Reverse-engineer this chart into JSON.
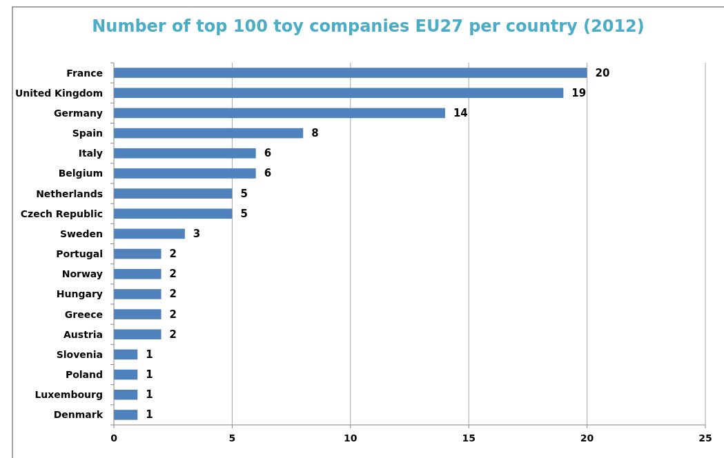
{
  "chart_data": {
    "type": "bar",
    "orientation": "horizontal",
    "title": "Number of top 100 toy companies EU27 per country (2012)",
    "categories": [
      "France",
      "United Kingdom",
      "Germany",
      "Spain",
      "Italy",
      "Belgium",
      "Netherlands",
      "Czech Republic",
      "Sweden",
      "Portugal",
      "Norway",
      "Hungary",
      "Greece",
      "Austria",
      "Slovenia",
      "Poland",
      "Luxembourg",
      "Denmark"
    ],
    "values": [
      20,
      19,
      14,
      8,
      6,
      6,
      5,
      5,
      3,
      2,
      2,
      2,
      2,
      2,
      1,
      1,
      1,
      1
    ],
    "color": "#4f81bd",
    "xlim": [
      0,
      25
    ],
    "xticks": [
      0,
      5,
      10,
      15,
      20,
      25
    ],
    "grid": "x",
    "data_labels": true
  }
}
